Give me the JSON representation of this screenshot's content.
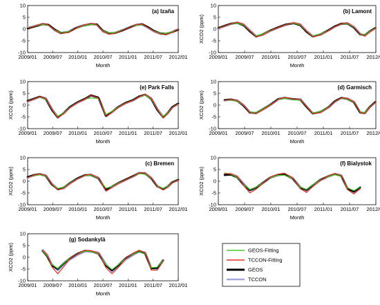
{
  "chart_data": {
    "type": "line",
    "x_tick_labels": [
      "2009/01",
      "2009/07",
      "2010/01",
      "2010/07",
      "2011/01",
      "2011/07",
      "2012/01"
    ],
    "ylim": [
      -10,
      10
    ],
    "y_ticks": [
      10,
      5,
      0,
      -5,
      -10
    ],
    "legend": {
      "placement": "bottom-right",
      "entries": [
        {
          "name": "GEOS-Fitting",
          "color": "#44cc22"
        },
        {
          "name": "TCCON-Fitting",
          "color": "#e03020"
        },
        {
          "name": "GEOS",
          "color": "#000000"
        },
        {
          "name": "TCCON",
          "color": "#a8a8e0"
        }
      ]
    },
    "panels": [
      {
        "id": "izana",
        "title": "(a) Izaña",
        "xlabel": "Month",
        "ylabel": "",
        "x": [
          0,
          0.02,
          0.06,
          0.1,
          0.14,
          0.18,
          0.22,
          0.27,
          0.32,
          0.37,
          0.42,
          0.46,
          0.5,
          0.54,
          0.58,
          0.63,
          0.68,
          0.72,
          0.76,
          0.8,
          0.84,
          0.88,
          0.92,
          0.96,
          1.0
        ],
        "series": {
          "TCCON": [
            0.5,
            0.8,
            1.5,
            2.2,
            1.6,
            -0.5,
            -1.8,
            -1.2,
            0.5,
            1.6,
            2.2,
            1.8,
            -1.0,
            -2.0,
            -1.6,
            -0.5,
            0.7,
            1.8,
            2.0,
            0.5,
            -1.0,
            -2.0,
            -2.2,
            -1.2,
            0.0
          ],
          "GEOS": [
            0.3,
            0.6,
            1.3,
            2.1,
            1.8,
            -0.2,
            -1.6,
            -1.3,
            0.4,
            1.5,
            2.1,
            2.0,
            -0.7,
            -1.8,
            -1.7,
            -0.6,
            0.8,
            1.7,
            2.1,
            0.8,
            -0.8,
            -1.8,
            -2.0,
            -1.3,
            -0.3
          ],
          "GEOS-Fitting": [
            0.4,
            0.7,
            1.4,
            2.0,
            1.5,
            -0.4,
            -1.5,
            -1.1,
            0.3,
            1.4,
            2.0,
            1.7,
            -0.8,
            -1.7,
            -1.5,
            -0.5,
            0.8,
            1.6,
            1.9,
            0.6,
            -0.9,
            -1.7,
            -1.9,
            -1.1,
            -0.2
          ],
          "TCCON-Fitting": [
            0.5,
            0.8,
            1.6,
            2.3,
            1.7,
            -0.6,
            -2.0,
            -1.4,
            0.4,
            1.7,
            2.4,
            1.9,
            -1.1,
            -2.2,
            -1.8,
            -0.6,
            0.8,
            1.9,
            2.1,
            0.5,
            -1.1,
            -2.1,
            -2.4,
            -1.4,
            0.0
          ]
        }
      },
      {
        "id": "lamont",
        "title": "(b) Lamont",
        "xlabel": "Month",
        "ylabel": "XCO2 (ppm)",
        "x": [
          0,
          0.04,
          0.08,
          0.12,
          0.16,
          0.2,
          0.24,
          0.28,
          0.33,
          0.38,
          0.43,
          0.48,
          0.52,
          0.56,
          0.6,
          0.65,
          0.7,
          0.74,
          0.78,
          0.82,
          0.86,
          0.9,
          0.93,
          0.96,
          1.0
        ],
        "series": {
          "TCCON": [
            0.3,
            1.2,
            2.2,
            2.8,
            2.0,
            -0.5,
            -3.0,
            -2.5,
            -0.8,
            0.6,
            1.8,
            2.6,
            2.0,
            -0.8,
            -3.0,
            -2.4,
            -0.5,
            1.0,
            2.2,
            2.5,
            1.0,
            -2.0,
            -2.8,
            -1.2,
            0.5
          ],
          "GEOS": [
            0.5,
            1.4,
            2.3,
            2.6,
            1.6,
            -1.0,
            -3.2,
            -2.3,
            -0.6,
            0.8,
            2.0,
            2.4,
            1.6,
            -1.2,
            -3.2,
            -2.2,
            -0.4,
            1.2,
            2.3,
            2.3,
            0.6,
            -2.3,
            -2.6,
            -1.0,
            0.6
          ],
          "GEOS-Fitting": [
            0.4,
            1.3,
            2.2,
            2.5,
            1.7,
            -0.8,
            -2.9,
            -2.2,
            -0.6,
            0.7,
            1.9,
            2.4,
            1.7,
            -1.0,
            -2.9,
            -2.1,
            -0.4,
            1.1,
            2.2,
            2.3,
            0.7,
            -2.1,
            -2.5,
            -1.0,
            0.5
          ],
          "TCCON-Fitting": [
            0.3,
            1.3,
            2.3,
            2.9,
            2.0,
            -0.7,
            -3.3,
            -2.6,
            -0.8,
            0.7,
            1.9,
            2.7,
            2.0,
            -1.0,
            -3.3,
            -2.5,
            -0.5,
            1.1,
            2.3,
            2.6,
            0.9,
            -2.3,
            -3.0,
            -1.3,
            0.4
          ]
        }
      },
      {
        "id": "parkfalls",
        "title": "(e) Park Falls",
        "xlabel": "Month",
        "ylabel": "XCO2 (ppm)",
        "x": [
          0,
          0.04,
          0.08,
          0.12,
          0.16,
          0.2,
          0.24,
          0.28,
          0.33,
          0.38,
          0.42,
          0.47,
          0.52,
          0.56,
          0.6,
          0.65,
          0.7,
          0.74,
          0.78,
          0.82,
          0.86,
          0.9,
          0.93,
          0.96,
          1.0
        ],
        "series": {
          "TCCON": [
            1.5,
            2.5,
            3.5,
            3.0,
            -1.5,
            -5.0,
            -3.5,
            -1.0,
            1.0,
            2.5,
            4.0,
            3.0,
            -4.5,
            -3.0,
            -1.0,
            0.8,
            2.0,
            3.5,
            4.5,
            3.0,
            -1.5,
            -5.0,
            -3.5,
            -1.0,
            0.5
          ],
          "GEOS": [
            1.8,
            2.7,
            3.6,
            2.6,
            -2.0,
            -5.3,
            -3.3,
            -0.8,
            1.2,
            2.7,
            4.2,
            3.2,
            -4.8,
            -2.8,
            -0.8,
            1.0,
            2.2,
            3.7,
            4.4,
            2.6,
            -2.0,
            -5.2,
            -3.3,
            -0.8,
            0.7
          ],
          "GEOS-Fitting": [
            1.6,
            2.6,
            3.4,
            2.5,
            -1.8,
            -4.8,
            -3.2,
            -0.9,
            1.1,
            2.6,
            3.0,
            2.8,
            -4.0,
            -2.6,
            -0.8,
            0.9,
            2.1,
            3.5,
            4.2,
            2.5,
            -1.8,
            -4.8,
            -3.2,
            -0.9,
            0.6
          ],
          "TCCON-Fitting": [
            1.5,
            2.6,
            3.6,
            2.8,
            -1.8,
            -5.4,
            -3.6,
            -1.0,
            1.0,
            2.6,
            4.2,
            3.0,
            -4.8,
            -3.1,
            -1.0,
            0.8,
            2.0,
            3.6,
            4.6,
            2.9,
            -1.8,
            -5.5,
            -3.6,
            -1.0,
            0.5
          ]
        }
      },
      {
        "id": "garmisch",
        "title": "(d) Garmisch",
        "xlabel": "Month",
        "ylabel": "XCO2 (ppm)",
        "x": [
          0.04,
          0.08,
          0.12,
          0.16,
          0.2,
          0.24,
          0.28,
          0.33,
          0.38,
          0.42,
          0.47,
          0.52,
          0.56,
          0.6,
          0.65,
          0.7,
          0.74,
          0.78,
          0.82,
          0.86,
          0.9,
          0.93,
          0.96,
          1.0
        ],
        "series": {
          "TCCON": [
            2.0,
            2.3,
            2.0,
            0.0,
            -3.0,
            -3.5,
            -2.0,
            0.0,
            2.5,
            3.2,
            2.5,
            2.5,
            -0.5,
            -3.5,
            -3.0,
            -1.0,
            1.5,
            3.0,
            2.8,
            1.5,
            -3.0,
            -3.5,
            -1.0,
            1.5
          ],
          "GEOS": [
            2.2,
            2.4,
            1.8,
            -0.3,
            -3.2,
            -3.3,
            -1.8,
            0.2,
            2.6,
            3.0,
            2.6,
            2.3,
            -0.8,
            -3.6,
            -2.8,
            -0.8,
            1.7,
            3.1,
            2.6,
            1.2,
            -3.2,
            -3.3,
            -0.8,
            1.6
          ],
          "GEOS-Fitting": [
            2.0,
            2.2,
            1.7,
            -0.2,
            -2.9,
            -3.1,
            -1.7,
            0.2,
            2.4,
            2.9,
            2.4,
            2.2,
            -0.6,
            -3.3,
            -2.7,
            -0.8,
            1.6,
            2.9,
            2.5,
            1.2,
            -2.9,
            -3.1,
            -0.8,
            1.5
          ],
          "TCCON-Fitting": [
            2.1,
            2.4,
            2.0,
            -0.1,
            -3.2,
            -3.6,
            -2.0,
            0.0,
            2.6,
            3.3,
            2.6,
            2.5,
            -0.6,
            -3.7,
            -3.1,
            -1.0,
            1.6,
            3.1,
            2.8,
            1.4,
            -3.2,
            -3.6,
            -1.0,
            1.5
          ]
        }
      },
      {
        "id": "bremen",
        "title": "(c) Bremen",
        "xlabel": "Month",
        "ylabel": "XCO2 (ppm)",
        "x": [
          0,
          0.04,
          0.08,
          0.12,
          0.16,
          0.2,
          0.24,
          0.28,
          0.33,
          0.38,
          0.42,
          0.47,
          0.52,
          0.56,
          0.6,
          0.65,
          0.7,
          0.74,
          0.78,
          0.82,
          0.86,
          0.9,
          0.93,
          0.96,
          1.0
        ],
        "series": {
          "TCCON": [
            1.5,
            2.5,
            3.0,
            2.5,
            -1.0,
            -3.5,
            -3.0,
            -1.0,
            1.0,
            2.5,
            2.8,
            1.5,
            -4.0,
            -2.5,
            -1.0,
            0.5,
            2.0,
            3.5,
            3.5,
            1.5,
            -2.0,
            -3.5,
            -2.5,
            -0.5,
            0.5
          ],
          "GEOS": [
            1.8,
            2.6,
            3.0,
            2.2,
            -1.4,
            -3.3,
            -2.7,
            -0.8,
            1.2,
            2.6,
            2.6,
            1.2,
            -3.6,
            -2.3,
            -0.8,
            0.7,
            2.2,
            3.4,
            3.2,
            1.2,
            -2.2,
            -3.3,
            -2.2,
            -0.4,
            0.6
          ],
          "GEOS-Fitting": [
            1.6,
            2.4,
            2.8,
            2.1,
            -1.2,
            -3.1,
            -2.6,
            -0.8,
            1.1,
            2.4,
            2.5,
            1.2,
            -3.0,
            -2.2,
            -0.8,
            0.6,
            2.1,
            3.2,
            3.0,
            1.2,
            -2.0,
            -3.1,
            -2.1,
            -0.4,
            0.5
          ],
          "TCCON-Fitting": [
            1.5,
            2.6,
            3.1,
            2.4,
            -1.3,
            -3.7,
            -3.0,
            -1.0,
            1.0,
            2.6,
            2.9,
            1.4,
            -4.2,
            -2.6,
            -1.0,
            0.5,
            2.1,
            3.6,
            3.5,
            1.4,
            -2.3,
            -3.7,
            -2.5,
            -0.5,
            0.4
          ]
        }
      },
      {
        "id": "bialystok",
        "title": "(f) Bialystok",
        "xlabel": "Month",
        "ylabel": "XCO2 (ppm)",
        "x": [
          0.04,
          0.08,
          0.12,
          0.16,
          0.2,
          0.24,
          0.28,
          0.33,
          0.38,
          0.42,
          0.47,
          0.52,
          0.56,
          0.6,
          0.65,
          0.7,
          0.74,
          0.78,
          0.82,
          0.86,
          0.9
        ],
        "series": {
          "TCCON": [
            3.0,
            3.0,
            2.0,
            -1.0,
            -4.0,
            -3.0,
            -1.0,
            1.5,
            2.5,
            3.0,
            1.5,
            -2.5,
            -4.0,
            -2.0,
            0.5,
            2.0,
            3.0,
            2.5,
            -3.0,
            -5.0,
            -3.0
          ],
          "GEOS": [
            2.6,
            2.8,
            1.6,
            -1.6,
            -3.8,
            -2.7,
            -0.8,
            1.6,
            2.8,
            2.8,
            1.2,
            -2.8,
            -3.7,
            -1.7,
            0.7,
            2.2,
            3.0,
            2.2,
            -3.2,
            -4.4,
            -2.6
          ],
          "GEOS-Fitting": [
            3.5,
            3.0,
            1.5,
            -1.5,
            -3.6,
            -2.6,
            -0.8,
            1.5,
            2.5,
            2.6,
            1.2,
            -2.6,
            -3.5,
            -1.6,
            0.7,
            2.0,
            2.8,
            2.0,
            -2.8,
            -4.0,
            -2.5
          ],
          "TCCON-Fitting": [
            3.2,
            3.2,
            2.0,
            -1.8,
            -5.0,
            -3.4,
            -1.0,
            1.8,
            3.0,
            3.4,
            1.4,
            -3.2,
            -4.8,
            -2.2,
            0.6,
            2.4,
            3.3,
            2.4,
            -3.6,
            -5.4,
            -3.2
          ]
        }
      },
      {
        "id": "sodankyla",
        "title": "(g) Sodankylä",
        "xlabel": "Month",
        "ylabel": "XCO2 (ppm)",
        "x": [
          0.1,
          0.13,
          0.16,
          0.2,
          0.24,
          0.28,
          0.33,
          0.38,
          0.42,
          0.47,
          0.52,
          0.56,
          0.6,
          0.65,
          0.7,
          0.74,
          0.78,
          0.82,
          0.86,
          0.9
        ],
        "series": {
          "TCCON": [
            3.0,
            1.0,
            -3.0,
            -5.5,
            -3.0,
            -1.0,
            1.0,
            2.5,
            2.5,
            2.0,
            -3.0,
            -6.0,
            -4.0,
            -1.0,
            1.0,
            2.5,
            2.0,
            -4.5,
            -5.0,
            -1.5
          ],
          "GEOS": [
            2.6,
            0.4,
            -3.4,
            -5.0,
            -2.6,
            -0.5,
            1.5,
            2.8,
            2.6,
            1.5,
            -3.6,
            -5.6,
            -3.5,
            -0.4,
            1.5,
            2.6,
            1.6,
            -4.8,
            -4.5,
            -1.2
          ],
          "GEOS-Fitting": [
            2.5,
            0.5,
            -3.0,
            -4.8,
            -2.5,
            -0.4,
            1.4,
            2.6,
            2.5,
            1.4,
            -3.2,
            -5.2,
            -3.3,
            -0.4,
            1.4,
            2.5,
            1.5,
            -4.4,
            -4.2,
            -1.2
          ],
          "TCCON-Fitting": [
            3.0,
            1.0,
            -4.0,
            -7.0,
            -4.0,
            -0.5,
            1.5,
            3.0,
            2.8,
            1.8,
            -4.5,
            -7.0,
            -4.5,
            -0.5,
            1.8,
            3.0,
            2.0,
            -5.5,
            -5.5,
            -1.5
          ]
        }
      }
    ]
  }
}
